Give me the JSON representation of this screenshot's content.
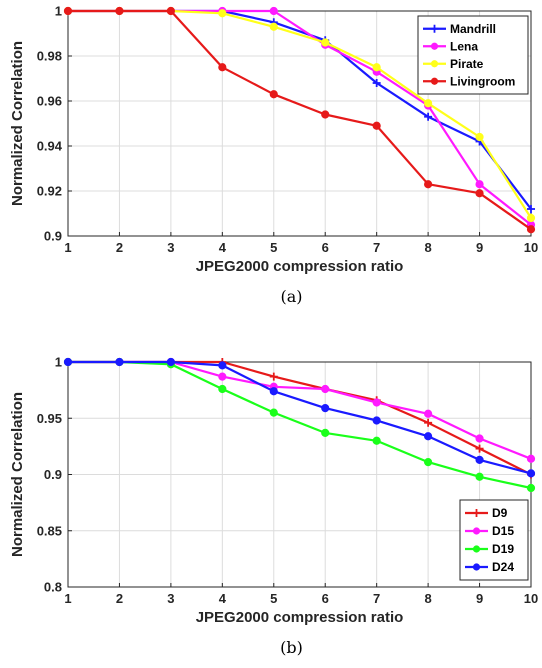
{
  "chart_data": [
    {
      "type": "line",
      "caption": "(a)",
      "xlabel": "JPEG2000 compression ratio",
      "ylabel": "Normalized Correlation",
      "x": [
        1,
        2,
        3,
        4,
        5,
        6,
        7,
        8,
        9,
        10
      ],
      "xlim": [
        1,
        10
      ],
      "ylim": [
        0.9,
        1
      ],
      "xticks": [
        "1",
        "2",
        "3",
        "4",
        "5",
        "6",
        "7",
        "8",
        "9",
        "10"
      ],
      "yticks": [
        "0.9",
        "0.92",
        "0.94",
        "0.96",
        "0.98",
        "1"
      ],
      "grid": true,
      "legend_position": "top-right",
      "series": [
        {
          "name": "Mandrill",
          "color": "#1a1aff",
          "marker": "plus",
          "values": [
            1.0,
            1.0,
            1.0,
            1.0,
            0.995,
            0.987,
            0.968,
            0.953,
            0.942,
            0.912
          ]
        },
        {
          "name": "Lena",
          "color": "#ff1aff",
          "marker": "circle",
          "values": [
            1.0,
            1.0,
            1.0,
            1.0,
            1.0,
            0.985,
            0.973,
            0.958,
            0.923,
            0.905
          ]
        },
        {
          "name": "Pirate",
          "color": "#ffff1a",
          "marker": "circle",
          "values": [
            1.0,
            1.0,
            1.0,
            0.999,
            0.993,
            0.986,
            0.975,
            0.959,
            0.944,
            0.908
          ]
        },
        {
          "name": "Livingroom",
          "color": "#e61a1a",
          "marker": "circle",
          "values": [
            1.0,
            1.0,
            1.0,
            0.975,
            0.963,
            0.954,
            0.949,
            0.923,
            0.919,
            0.903
          ]
        }
      ]
    },
    {
      "type": "line",
      "caption": "(b)",
      "xlabel": "JPEG2000 compression ratio",
      "ylabel": "Normalized Correlation",
      "x": [
        1,
        2,
        3,
        4,
        5,
        6,
        7,
        8,
        9,
        10
      ],
      "xlim": [
        1,
        10
      ],
      "ylim": [
        0.8,
        1
      ],
      "xticks": [
        "1",
        "2",
        "3",
        "4",
        "5",
        "6",
        "7",
        "8",
        "9",
        "10"
      ],
      "yticks": [
        "0.8",
        "0.85",
        "0.9",
        "0.95",
        "1"
      ],
      "grid": true,
      "legend_position": "bottom-right",
      "series": [
        {
          "name": "D9",
          "color": "#e61a1a",
          "marker": "plus",
          "values": [
            1.0,
            1.0,
            1.0,
            1.0,
            0.987,
            0.976,
            0.966,
            0.946,
            0.923,
            0.9
          ]
        },
        {
          "name": "D15",
          "color": "#ff1aff",
          "marker": "circle",
          "values": [
            1.0,
            1.0,
            1.0,
            0.987,
            0.978,
            0.976,
            0.964,
            0.954,
            0.932,
            0.914
          ]
        },
        {
          "name": "D19",
          "color": "#1aff1a",
          "marker": "circle",
          "values": [
            1.0,
            1.0,
            0.998,
            0.976,
            0.955,
            0.937,
            0.93,
            0.911,
            0.898,
            0.888
          ]
        },
        {
          "name": "D24",
          "color": "#1a1aff",
          "marker": "circle",
          "values": [
            1.0,
            1.0,
            1.0,
            0.997,
            0.974,
            0.959,
            0.948,
            0.934,
            0.913,
            0.901
          ]
        }
      ]
    }
  ]
}
